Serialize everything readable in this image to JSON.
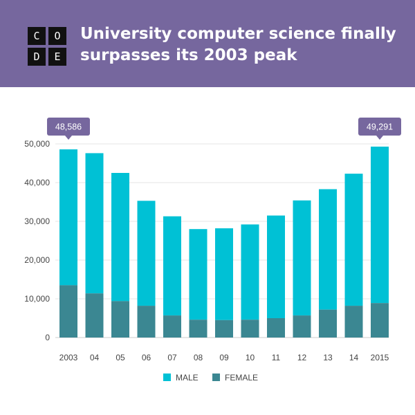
{
  "header": {
    "logo_letters": [
      "C",
      "O",
      "D",
      "E"
    ],
    "title": "University computer science finally surpasses its 2003 peak",
    "background_color": "#76679e"
  },
  "chart_data": {
    "type": "bar",
    "stacked": true,
    "categories": [
      "2003",
      "04",
      "05",
      "06",
      "07",
      "08",
      "09",
      "10",
      "11",
      "12",
      "13",
      "14",
      "2015"
    ],
    "series": [
      {
        "name": "FEMALE",
        "color": "#3b8792",
        "values": [
          13500,
          11400,
          9400,
          8200,
          5700,
          4600,
          4500,
          4600,
          5000,
          5700,
          7200,
          8200,
          8900
        ]
      },
      {
        "name": "MALE",
        "color": "#00c1d5",
        "values": [
          35086,
          36200,
          33100,
          27100,
          25600,
          23400,
          23700,
          24600,
          26500,
          29700,
          31100,
          34100,
          40391
        ]
      }
    ],
    "totals": [
      48586,
      47600,
      42500,
      35300,
      31300,
      28000,
      28200,
      29200,
      31500,
      35400,
      38300,
      42300,
      49291
    ],
    "callouts": [
      {
        "index": 0,
        "label": "48,586"
      },
      {
        "index": 12,
        "label": "49,291"
      }
    ],
    "yticks": [
      0,
      10000,
      20000,
      30000,
      40000,
      50000
    ],
    "ytick_labels": [
      "0",
      "10,000",
      "20,000",
      "30,000",
      "40,000",
      "50,000"
    ],
    "ylim": [
      0,
      50000
    ],
    "grid": true,
    "legend": {
      "placement": "bottom-center",
      "entries": [
        "MALE",
        "FEMALE"
      ]
    },
    "callout_color": "#76679e",
    "xlabel": "",
    "ylabel": ""
  }
}
